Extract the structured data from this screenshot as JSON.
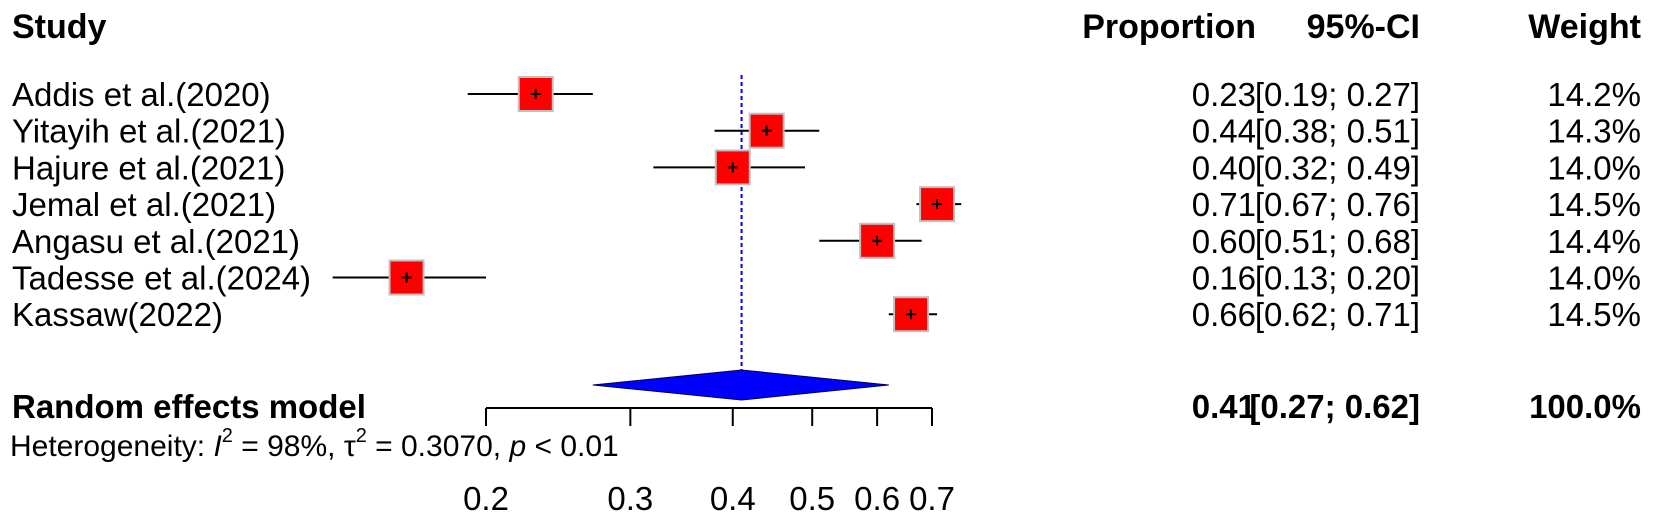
{
  "chart_data": {
    "type": "forest",
    "columns": {
      "study": "Study",
      "proportion": "Proportion",
      "ci": "95%-CI",
      "weight": "Weight"
    },
    "studies": [
      {
        "name": "Addis et al.(2020)",
        "proportion": 0.23,
        "lower": 0.19,
        "upper": 0.27,
        "proportion_text": "0.23",
        "ci_text": "[0.19; 0.27]",
        "weight_text": "14.2%"
      },
      {
        "name": "Yitayih et al.(2021)",
        "proportion": 0.44,
        "lower": 0.38,
        "upper": 0.51,
        "proportion_text": "0.44",
        "ci_text": "[0.38; 0.51]",
        "weight_text": "14.3%"
      },
      {
        "name": "Hajure et al.(2021)",
        "proportion": 0.4,
        "lower": 0.32,
        "upper": 0.49,
        "proportion_text": "0.40",
        "ci_text": "[0.32; 0.49]",
        "weight_text": "14.0%"
      },
      {
        "name": "Jemal et al.(2021)",
        "proportion": 0.71,
        "lower": 0.67,
        "upper": 0.76,
        "proportion_text": "0.71",
        "ci_text": "[0.67; 0.76]",
        "weight_text": "14.5%"
      },
      {
        "name": "Angasu et al.(2021)",
        "proportion": 0.6,
        "lower": 0.51,
        "upper": 0.68,
        "proportion_text": "0.60",
        "ci_text": "[0.51; 0.68]",
        "weight_text": "14.4%"
      },
      {
        "name": "Tadesse et al.(2024)",
        "proportion": 0.16,
        "lower": 0.13,
        "upper": 0.2,
        "proportion_text": "0.16",
        "ci_text": "[0.13; 0.20]",
        "weight_text": "14.0%"
      },
      {
        "name": "Kassaw(2022)",
        "proportion": 0.66,
        "lower": 0.62,
        "upper": 0.71,
        "proportion_text": "0.66",
        "ci_text": "[0.62; 0.71]",
        "weight_text": "14.5%"
      }
    ],
    "summary": {
      "name": "Random effects model",
      "proportion": 0.41,
      "lower": 0.27,
      "upper": 0.62,
      "proportion_text": "0.41",
      "ci_text": "[0.27; 0.62]",
      "weight_text": "100.0%"
    },
    "heterogeneity": {
      "label": "Heterogeneity: ",
      "i2_symbol": "I",
      "i2_value": " = 98%, ",
      "tau2_symbol": "τ",
      "tau2_value": " = 0.3070, ",
      "p_symbol": "p",
      "p_value": " < 0.01",
      "superscript": "2"
    },
    "x_ticks": [
      0.2,
      0.3,
      0.4,
      0.5,
      0.6,
      0.7
    ],
    "x_tick_labels": [
      "0.2",
      "0.3",
      "0.4",
      "0.5",
      "0.6",
      "0.7"
    ],
    "xlim": [
      0.2,
      0.7
    ],
    "scale": "log",
    "reference_line": 0.41,
    "colors": {
      "square_fill": "#ff0000",
      "square_border": "#c0c0c0",
      "diamond_fill": "#0000ff",
      "reference_line": "#0000ff",
      "text": "#000000"
    }
  }
}
